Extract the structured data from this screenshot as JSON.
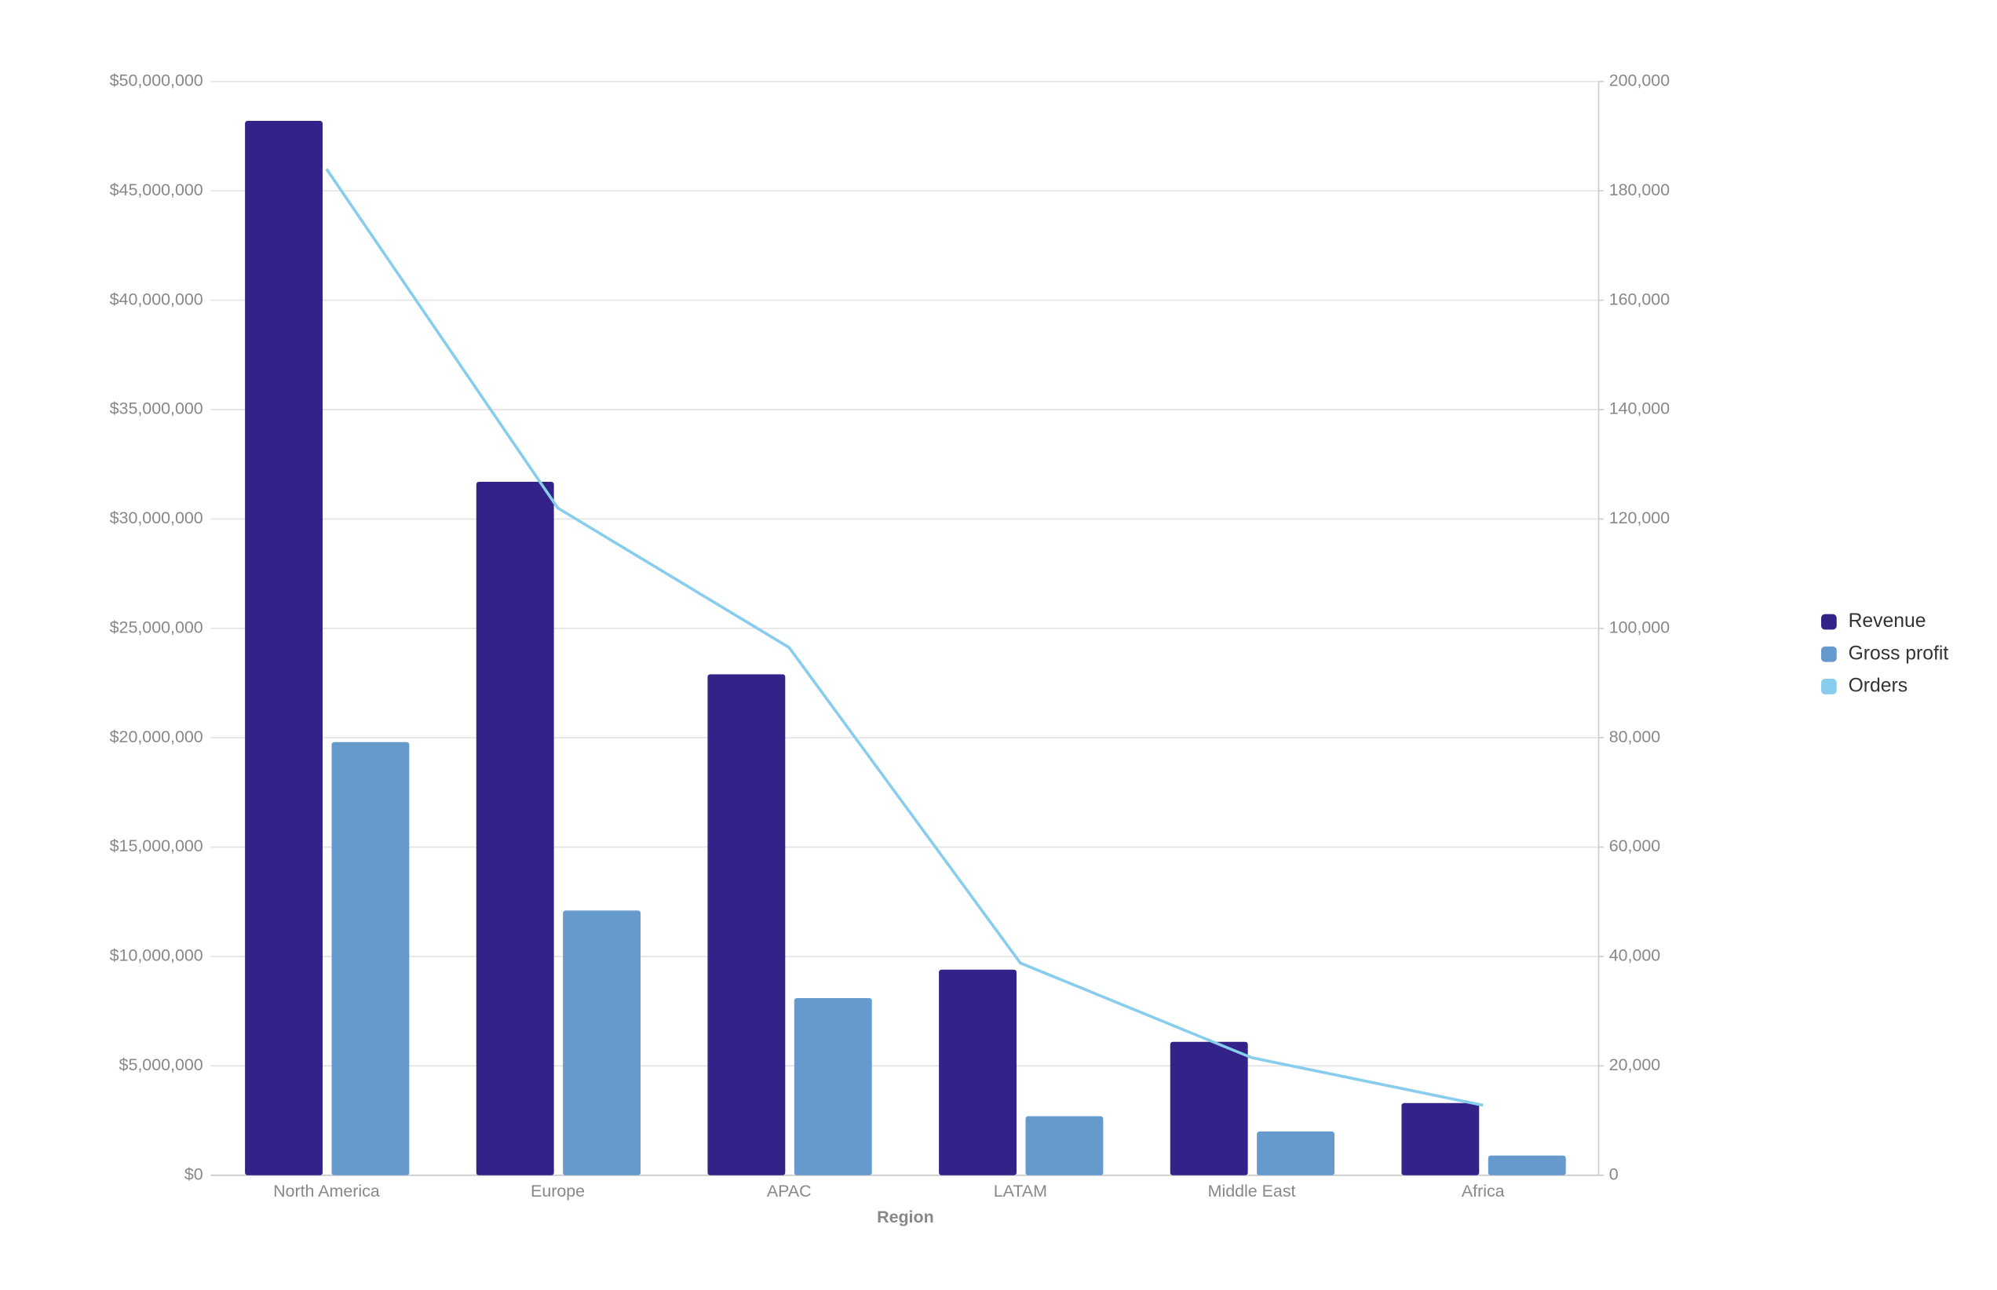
{
  "chart_data": {
    "type": "bar_line",
    "x_label": "Region",
    "categories": [
      "North America",
      "Europe",
      "APAC",
      "LATAM",
      "Middle East",
      "Africa"
    ],
    "series": [
      {
        "name": "Revenue",
        "color": "#332288",
        "type": "bar",
        "values": [
          48200000,
          31700000,
          22900000,
          9400000,
          6100000,
          3300000
        ]
      },
      {
        "name": "Gross profit",
        "color": "#6699cc",
        "type": "bar",
        "values": [
          19800000,
          12100000,
          8100000,
          2700000,
          2000000,
          900000
        ]
      },
      {
        "name": "Orders",
        "color": "#88ccee",
        "type": "line",
        "axis": "y2",
        "values": [
          184000,
          122000,
          96500,
          38800,
          21500,
          12800
        ]
      }
    ],
    "ylim": [
      0,
      50000000
    ],
    "yticks": [
      {
        "value": 0,
        "label": "$0"
      },
      {
        "value": 5000000,
        "label": "$5,000,000"
      },
      {
        "value": 10000000,
        "label": "$10,000,000"
      },
      {
        "value": 15000000,
        "label": "$15,000,000"
      },
      {
        "value": 20000000,
        "label": "$20,000,000"
      },
      {
        "value": 25000000,
        "label": "$25,000,000"
      },
      {
        "value": 30000000,
        "label": "$30,000,000"
      },
      {
        "value": 35000000,
        "label": "$35,000,000"
      },
      {
        "value": 40000000,
        "label": "$40,000,000"
      },
      {
        "value": 45000000,
        "label": "$45,000,000"
      },
      {
        "value": 50000000,
        "label": "$50,000,000"
      }
    ],
    "y2lim": [
      0,
      200000
    ],
    "y2ticks": [
      0,
      {
        "value": 20000,
        "label": "20,000"
      },
      {
        "value": 40000,
        "label": "40,000"
      },
      {
        "value": 60000,
        "label": "60,000"
      },
      {
        "value": 80000,
        "label": "80,000"
      },
      {
        "value": 100000,
        "label": "100,000"
      },
      {
        "value": 120000,
        "label": "120,000"
      },
      {
        "value": 140000,
        "label": "140,000"
      },
      {
        "value": 160000,
        "label": "160,000"
      },
      {
        "value": 180000,
        "label": "180,000"
      },
      {
        "value": 200000,
        "label": "200,000"
      }
    ],
    "grid": true,
    "legend": "right"
  }
}
